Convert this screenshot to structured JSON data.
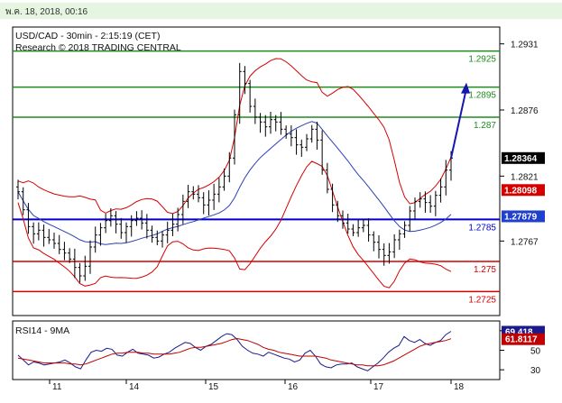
{
  "header": {
    "date_stamp": "พ.ค. 18, 2018, 00:16",
    "instrument": "USD/CAD - 30min - 2:15:19 (CET)",
    "research_credit": "Research © 2018 TRADING CENTRAL"
  },
  "colors": {
    "topbar_bg": "#e6f5df",
    "candles": "#000000",
    "bollinger": "#d40000",
    "moving_average": "#2b3fb3",
    "resistance": "#1e8c1e",
    "support": "#d40000",
    "pivot": "#0000cc",
    "projection_arrow": "#1616b0",
    "rsi_line": "#1a1a8c",
    "rsi_ma": "#c00000"
  },
  "chart_data": [
    {
      "type": "candlestick",
      "title": "USD/CAD - 30min - 2:15:19 (CET)",
      "x_ticks": [
        "11",
        "14",
        "15",
        "16",
        "17",
        "18"
      ],
      "y_ticks": [
        1.2931,
        1.2876,
        1.2821,
        1.2767
      ],
      "ylim": [
        1.2705,
        1.2945
      ],
      "grid": false,
      "last_price": 1.28364,
      "series": [
        {
          "name": "",
          "kind": "candles",
          "close": [
            1.2808,
            1.2793,
            1.2779,
            1.2773,
            1.2776,
            1.277,
            1.2768,
            1.2765,
            1.276,
            1.2757,
            1.2752,
            1.2745,
            1.2738,
            1.2746,
            1.2762,
            1.2772,
            1.2778,
            1.2784,
            1.2788,
            1.2781,
            1.2774,
            1.2779,
            1.2784,
            1.2786,
            1.2782,
            1.2776,
            1.277,
            1.2767,
            1.2772,
            1.2776,
            1.2781,
            1.2789,
            1.28,
            1.2808,
            1.2806,
            1.2803,
            1.2797,
            1.2801,
            1.2806,
            1.2812,
            1.2821,
            1.2836,
            1.2872,
            1.2908,
            1.2898,
            1.2879,
            1.287,
            1.2866,
            1.2862,
            1.2868,
            1.2866,
            1.286,
            1.2856,
            1.2853,
            1.2847,
            1.2845,
            1.2852,
            1.286,
            1.2851,
            1.2826,
            1.281,
            1.2797,
            1.2788,
            1.2782,
            1.2777,
            1.2774,
            1.2778,
            1.278,
            1.2772,
            1.2766,
            1.276,
            1.2755,
            1.2758,
            1.2768,
            1.2773,
            1.278,
            1.2792,
            1.28,
            1.2802,
            1.2799,
            1.2796,
            1.2805,
            1.2812,
            1.2826,
            1.2836
          ]
        }
      ],
      "levels": [
        {
          "label": "1.2925",
          "value": 1.2925,
          "kind": "resistance"
        },
        {
          "label": "1.2895",
          "value": 1.2895,
          "kind": "resistance"
        },
        {
          "label": "1.287",
          "value": 1.287,
          "kind": "resistance"
        },
        {
          "label": "1.2785",
          "value": 1.2785,
          "kind": "pivot"
        },
        {
          "label": "1.275",
          "value": 1.275,
          "kind": "support"
        },
        {
          "label": "1.2725",
          "value": 1.2725,
          "kind": "support"
        }
      ],
      "price_tags": [
        {
          "label": "1.28364",
          "value": 1.28364,
          "color": "#000000"
        },
        {
          "label": "1.28098",
          "value": 1.28098,
          "color": "#d40000"
        },
        {
          "label": "1.27879",
          "value": 1.27879,
          "color": "#1f3fcc"
        }
      ],
      "projection": {
        "to": 1.2895
      }
    },
    {
      "type": "line",
      "title": "RSI14 - 9MA",
      "y_ticks": [
        70,
        50,
        30
      ],
      "ylim": [
        20,
        80
      ],
      "grid": false,
      "series": [
        {
          "name": "RSI14",
          "values": [
            45,
            40,
            35,
            38,
            37,
            35,
            36,
            37,
            38,
            40,
            37,
            33,
            31,
            40,
            48,
            50,
            49,
            52,
            51,
            45,
            44,
            48,
            51,
            47,
            46,
            45,
            42,
            43,
            46,
            48,
            52,
            55,
            58,
            57,
            53,
            50,
            54,
            56,
            60,
            64,
            67,
            66,
            61,
            54,
            50,
            47,
            46,
            44,
            48,
            46,
            44,
            42,
            41,
            38,
            40,
            47,
            50,
            44,
            36,
            33,
            32,
            35,
            36,
            36,
            37,
            33,
            31,
            29,
            33,
            37,
            42,
            48,
            52,
            55,
            64,
            60,
            58,
            61,
            57,
            55,
            58,
            60,
            66,
            69.4
          ]
        },
        {
          "name": "9MA",
          "values": [
            42,
            41,
            40,
            39,
            38,
            37,
            37,
            37,
            37,
            37,
            36,
            36,
            35,
            36,
            38,
            40,
            42,
            44,
            46,
            47,
            47,
            48,
            48,
            48,
            47,
            47,
            46,
            46,
            46,
            46,
            47,
            48,
            50,
            52,
            53,
            53,
            54,
            55,
            56,
            57,
            59,
            61,
            62,
            61,
            60,
            58,
            56,
            53,
            51,
            50,
            48,
            47,
            46,
            45,
            44,
            44,
            44,
            44,
            43,
            42,
            40,
            39,
            38,
            37,
            36,
            35,
            35,
            34,
            34,
            34,
            35,
            37,
            39,
            42,
            45,
            48,
            51,
            54,
            56,
            57,
            58,
            59,
            60,
            61.8
          ]
        }
      ],
      "value_tags": [
        {
          "label": "69.418",
          "value": 69.418,
          "color": "#1a1a8c"
        },
        {
          "label": "61.8117",
          "value": 61.8117,
          "color": "#c00000"
        }
      ]
    }
  ]
}
